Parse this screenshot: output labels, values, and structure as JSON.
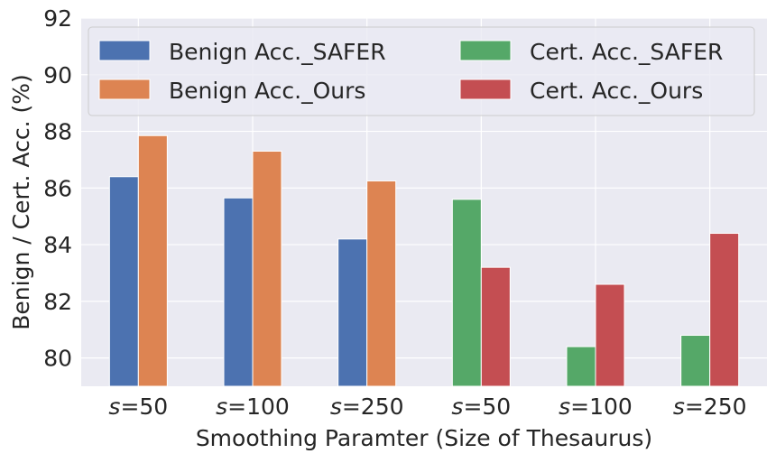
{
  "chart_data": {
    "type": "bar",
    "title": "",
    "xlabel": "Smoothing Paramter (Size of Thesaurus)",
    "ylabel": "Benign / Cert. Acc. (%)",
    "ylim": [
      79,
      92
    ],
    "yticks": [
      "80",
      "82",
      "84",
      "86",
      "88",
      "90",
      "92"
    ],
    "categories": [
      {
        "var": "s",
        "rest": "=50"
      },
      {
        "var": "s",
        "rest": "=100"
      },
      {
        "var": "s",
        "rest": "=250"
      },
      {
        "var": "s",
        "rest": "=50"
      },
      {
        "var": "s",
        "rest": "=100"
      },
      {
        "var": "s",
        "rest": "=250"
      }
    ],
    "series": [
      {
        "name": "Benign Acc._SAFER",
        "color": "#4c72b0",
        "values": [
          86.4,
          85.65,
          84.2,
          null,
          null,
          null
        ]
      },
      {
        "name": "Benign Acc._Ours",
        "color": "#dd8452",
        "values": [
          87.85,
          87.3,
          86.25,
          null,
          null,
          null
        ]
      },
      {
        "name": "Cert. Acc._SAFER",
        "color": "#55a868",
        "values": [
          null,
          null,
          null,
          85.6,
          80.4,
          80.8
        ]
      },
      {
        "name": "Cert. Acc._Ours",
        "color": "#c44e52",
        "values": [
          null,
          null,
          null,
          83.2,
          82.6,
          84.4
        ]
      }
    ],
    "grid": true,
    "background": "#eaeaf2",
    "legend": {
      "placement": "top",
      "columns": 2
    }
  }
}
